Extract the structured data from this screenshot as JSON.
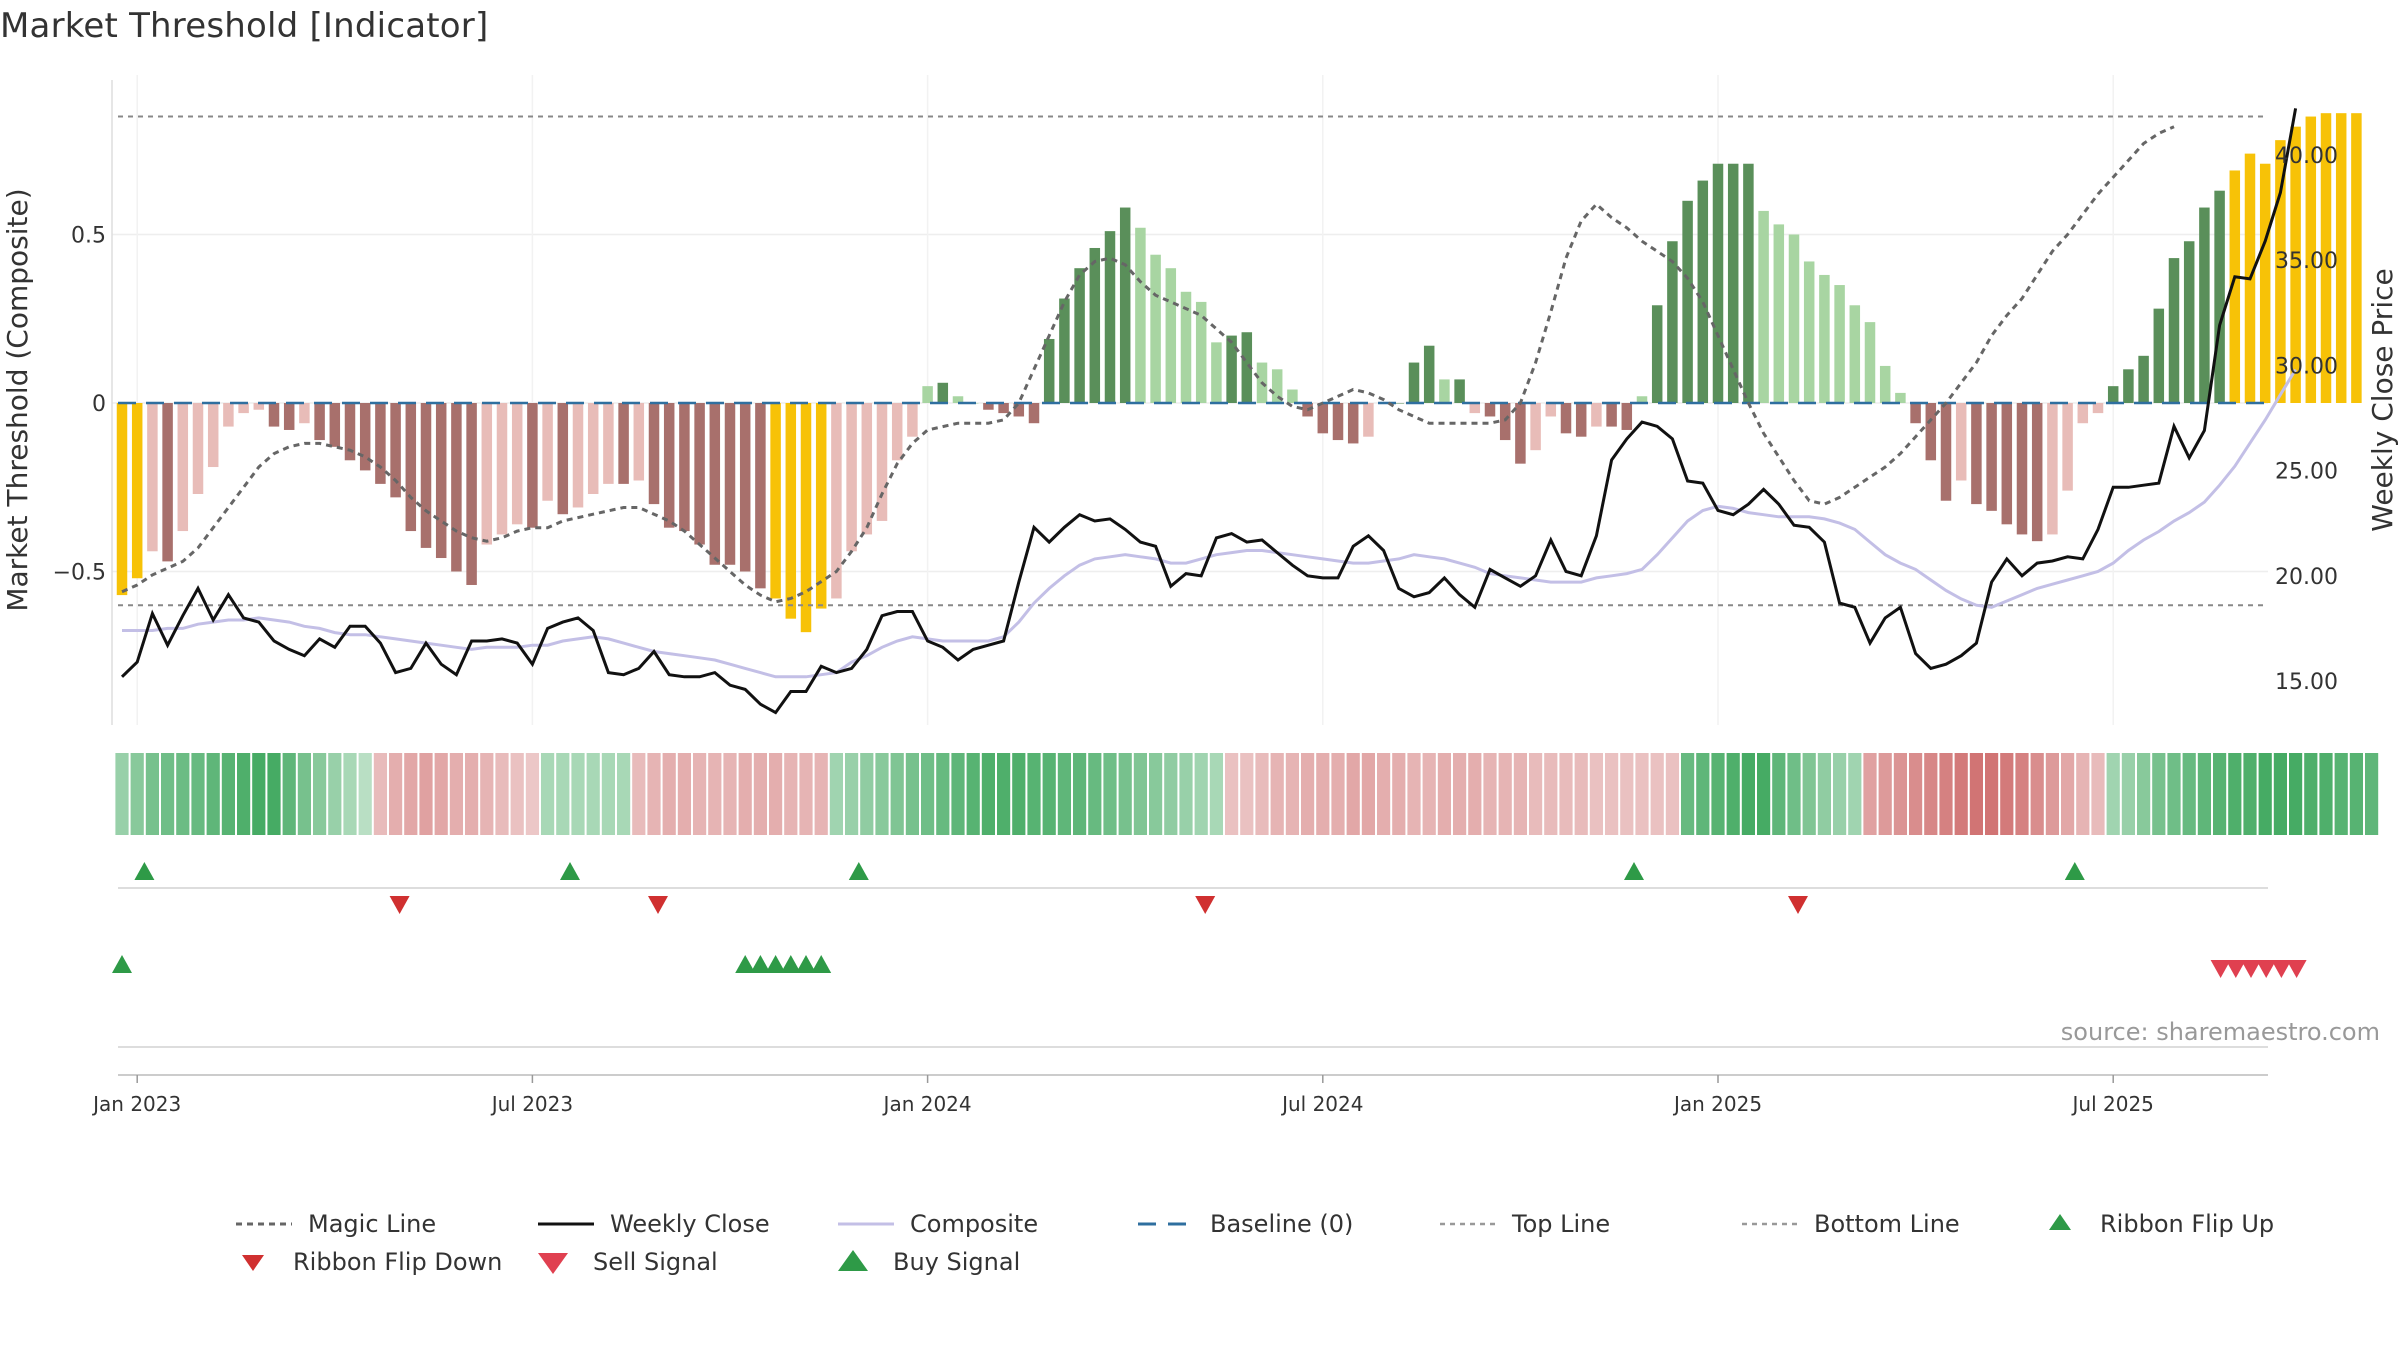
{
  "chart_data": {
    "type": "bar",
    "title": "Market Threshold [Indicator]",
    "ylabel_left": "Market Threshold (Composite)",
    "ylabel_right": "Weekly Close Price",
    "source": "source: sharemaestro.com",
    "ylim_left": [
      -0.95,
      0.95
    ],
    "ylim_right": [
      12.5,
      43.5
    ],
    "left_ticks": [
      {
        "v": 0.5,
        "label": "0.5"
      },
      {
        "v": 0,
        "label": "0"
      },
      {
        "v": -0.5,
        "label": "−0.5"
      }
    ],
    "right_ticks": [
      {
        "v": 40,
        "label": "40.00"
      },
      {
        "v": 35,
        "label": "35.00"
      },
      {
        "v": 30,
        "label": "30.00"
      },
      {
        "v": 25,
        "label": "25.00"
      },
      {
        "v": 20,
        "label": "20.00"
      },
      {
        "v": 15,
        "label": "15.00"
      }
    ],
    "x_ticks": [
      {
        "week": 1,
        "label": "Jan 2023"
      },
      {
        "week": 27,
        "label": "Jul 2023"
      },
      {
        "week": 53,
        "label": "Jan 2024"
      },
      {
        "week": 79,
        "label": "Jul 2024"
      },
      {
        "week": 105,
        "label": "Jan 2025"
      },
      {
        "week": 131,
        "label": "Jul 2025"
      }
    ],
    "top_line": 0.85,
    "bottom_line": -0.6,
    "baseline": 0,
    "composite_bars": [
      -0.57,
      -0.52,
      -0.44,
      -0.47,
      -0.38,
      -0.27,
      -0.19,
      -0.07,
      -0.03,
      -0.02,
      -0.07,
      -0.08,
      -0.06,
      -0.11,
      -0.13,
      -0.17,
      -0.2,
      -0.24,
      -0.28,
      -0.38,
      -0.43,
      -0.46,
      -0.5,
      -0.54,
      -0.42,
      -0.39,
      -0.36,
      -0.37,
      -0.29,
      -0.33,
      -0.31,
      -0.27,
      -0.24,
      -0.24,
      -0.23,
      -0.3,
      -0.37,
      -0.38,
      -0.42,
      -0.48,
      -0.48,
      -0.5,
      -0.55,
      -0.58,
      -0.64,
      -0.68,
      -0.61,
      -0.58,
      -0.44,
      -0.39,
      -0.35,
      -0.17,
      -0.1,
      0.05,
      0.06,
      0.02,
      0,
      -0.02,
      -0.03,
      -0.04,
      -0.06,
      0.19,
      0.31,
      0.4,
      0.46,
      0.51,
      0.58,
      0.52,
      0.44,
      0.4,
      0.33,
      0.3,
      0.18,
      0.2,
      0.21,
      0.12,
      0.1,
      0.04,
      -0.04,
      -0.09,
      -0.11,
      -0.12,
      -0.1,
      0,
      0,
      0.12,
      0.17,
      0.07,
      0.07,
      -0.03,
      -0.04,
      -0.11,
      -0.18,
      -0.14,
      -0.04,
      -0.09,
      -0.1,
      -0.07,
      -0.07,
      -0.08,
      0.02,
      0.29,
      0.48,
      0.6,
      0.66,
      0.71,
      0.71,
      0.71,
      0.57,
      0.53,
      0.5,
      0.42,
      0.38,
      0.35,
      0.29,
      0.24,
      0.11,
      0.03,
      -0.06,
      -0.17,
      -0.29,
      -0.23,
      -0.3,
      -0.32,
      -0.36,
      -0.39,
      -0.41,
      -0.39,
      -0.26,
      -0.06,
      -0.03,
      0.05,
      0.1,
      0.14,
      0.28,
      0.43,
      0.48,
      0.58,
      0.63,
      0.69,
      0.74,
      0.71,
      0.78,
      0.82,
      0.85,
      0.86,
      0.86,
      0.86
    ],
    "weekly_close": [
      15.2,
      15.9,
      18.2,
      16.7,
      18.1,
      19.4,
      17.9,
      19.1,
      18.0,
      17.8,
      16.9,
      16.5,
      16.2,
      17.0,
      16.6,
      17.6,
      17.6,
      16.8,
      15.4,
      15.6,
      16.8,
      15.8,
      15.3,
      16.9,
      16.9,
      17.0,
      16.8,
      15.8,
      17.5,
      17.8,
      18.0,
      17.4,
      15.4,
      15.3,
      15.6,
      16.4,
      15.3,
      15.2,
      15.2,
      15.4,
      14.8,
      14.6,
      13.9,
      13.5,
      14.5,
      14.5,
      15.7,
      15.4,
      15.6,
      16.5,
      18.1,
      18.3,
      18.3,
      16.9,
      16.6,
      16.0,
      16.5,
      16.7,
      16.9,
      19.7,
      22.3,
      21.6,
      22.3,
      22.9,
      22.6,
      22.7,
      22.2,
      21.6,
      21.4,
      19.5,
      20.1,
      20.0,
      21.8,
      22.0,
      21.6,
      21.7,
      21.1,
      20.5,
      20.0,
      19.9,
      19.9,
      21.4,
      21.9,
      21.2,
      19.4,
      19.0,
      19.2,
      19.9,
      19.1,
      18.5,
      20.3,
      19.9,
      19.5,
      20.0,
      21.7,
      20.2,
      20.0,
      21.9,
      25.5,
      26.5,
      27.3,
      27.1,
      26.5,
      24.5,
      24.4,
      23.1,
      22.9,
      23.4,
      24.1,
      23.4,
      22.4,
      22.3,
      21.6,
      18.7,
      18.5,
      16.8,
      18.0,
      18.5,
      16.3,
      15.6,
      15.8,
      16.2,
      16.8,
      19.7,
      20.8,
      20.0,
      20.6,
      20.7,
      20.9,
      20.8,
      22.2,
      24.2,
      24.2,
      24.3,
      24.4,
      27.1,
      25.6,
      26.9,
      31.9,
      34.2,
      34.1,
      35.9,
      38.2,
      42.2
    ],
    "composite_line": [
      17.4,
      17.4,
      17.4,
      17.5,
      17.5,
      17.7,
      17.8,
      17.9,
      17.9,
      18.0,
      17.9,
      17.8,
      17.6,
      17.5,
      17.3,
      17.2,
      17.2,
      17.1,
      17.0,
      16.9,
      16.8,
      16.7,
      16.6,
      16.5,
      16.6,
      16.6,
      16.6,
      16.7,
      16.7,
      16.9,
      17.0,
      17.1,
      17.0,
      16.8,
      16.6,
      16.4,
      16.3,
      16.2,
      16.1,
      16.0,
      15.8,
      15.6,
      15.4,
      15.2,
      15.2,
      15.2,
      15.3,
      15.4,
      15.9,
      16.2,
      16.6,
      16.9,
      17.1,
      17.0,
      16.9,
      16.9,
      16.9,
      16.9,
      17.1,
      17.8,
      18.7,
      19.4,
      20.0,
      20.5,
      20.8,
      20.9,
      21.0,
      20.9,
      20.8,
      20.6,
      20.6,
      20.8,
      21.0,
      21.1,
      21.2,
      21.2,
      21.1,
      21.0,
      20.9,
      20.8,
      20.7,
      20.6,
      20.6,
      20.7,
      20.8,
      21.0,
      20.9,
      20.8,
      20.6,
      20.4,
      20.1,
      20.0,
      19.9,
      19.8,
      19.7,
      19.7,
      19.7,
      19.9,
      20.0,
      20.1,
      20.3,
      21.0,
      21.8,
      22.6,
      23.1,
      23.3,
      23.2,
      23.0,
      22.9,
      22.8,
      22.8,
      22.8,
      22.7,
      22.5,
      22.2,
      21.6,
      21.0,
      20.6,
      20.3,
      19.8,
      19.3,
      18.9,
      18.6,
      18.5,
      18.8,
      19.1,
      19.4,
      19.6,
      19.8,
      20.0,
      20.2,
      20.6,
      21.2,
      21.7,
      22.1,
      22.6,
      23.0,
      23.5,
      24.3,
      25.2,
      26.3,
      27.4,
      28.6,
      29.8
    ],
    "magic_line": [
      -0.56,
      -0.54,
      -0.51,
      -0.49,
      -0.47,
      -0.43,
      -0.37,
      -0.31,
      -0.25,
      -0.19,
      -0.15,
      -0.13,
      -0.12,
      -0.12,
      -0.13,
      -0.14,
      -0.16,
      -0.19,
      -0.23,
      -0.28,
      -0.32,
      -0.35,
      -0.38,
      -0.4,
      -0.41,
      -0.4,
      -0.38,
      -0.37,
      -0.37,
      -0.35,
      -0.34,
      -0.33,
      -0.32,
      -0.31,
      -0.31,
      -0.33,
      -0.35,
      -0.38,
      -0.42,
      -0.46,
      -0.5,
      -0.54,
      -0.57,
      -0.59,
      -0.58,
      -0.56,
      -0.53,
      -0.5,
      -0.44,
      -0.37,
      -0.27,
      -0.18,
      -0.12,
      -0.08,
      -0.07,
      -0.06,
      -0.06,
      -0.06,
      -0.05,
      0.0,
      0.1,
      0.2,
      0.3,
      0.38,
      0.42,
      0.43,
      0.41,
      0.36,
      0.32,
      0.3,
      0.28,
      0.26,
      0.22,
      0.18,
      0.12,
      0.06,
      0.02,
      -0.01,
      -0.02,
      0.0,
      0.02,
      0.04,
      0.03,
      0.01,
      -0.02,
      -0.04,
      -0.06,
      -0.06,
      -0.06,
      -0.06,
      -0.06,
      -0.05,
      0.0,
      0.12,
      0.27,
      0.43,
      0.54,
      0.59,
      0.55,
      0.52,
      0.48,
      0.45,
      0.42,
      0.37,
      0.3,
      0.2,
      0.1,
      0.0,
      -0.09,
      -0.16,
      -0.23,
      -0.29,
      -0.3,
      -0.28,
      -0.25,
      -0.22,
      -0.19,
      -0.15,
      -0.1,
      -0.05,
      0.0,
      0.06,
      0.12,
      0.2,
      0.26,
      0.31,
      0.38,
      0.45,
      0.5,
      0.56,
      0.62,
      0.67,
      0.72,
      0.77,
      0.8,
      0.82
    ],
    "ribbon_strengths": [
      0.35,
      0.45,
      0.55,
      0.6,
      0.62,
      0.65,
      0.7,
      0.75,
      0.8,
      0.85,
      0.85,
      0.7,
      0.55,
      0.45,
      0.35,
      0.25,
      0.15,
      -0.25,
      -0.35,
      -0.4,
      -0.45,
      -0.4,
      -0.35,
      -0.35,
      -0.3,
      -0.25,
      -0.2,
      -0.15,
      0.25,
      0.25,
      0.25,
      0.25,
      0.25,
      0.25,
      -0.25,
      -0.3,
      -0.35,
      -0.35,
      -0.3,
      -0.3,
      -0.3,
      -0.35,
      -0.35,
      -0.35,
      -0.3,
      -0.3,
      -0.3,
      0.3,
      0.35,
      0.4,
      0.45,
      0.5,
      0.55,
      0.6,
      0.65,
      0.7,
      0.75,
      0.8,
      0.8,
      0.8,
      0.75,
      0.75,
      0.7,
      0.7,
      0.65,
      0.6,
      0.55,
      0.5,
      0.45,
      0.4,
      0.35,
      0.3,
      0.25,
      -0.2,
      -0.2,
      -0.25,
      -0.3,
      -0.3,
      -0.35,
      -0.35,
      -0.35,
      -0.4,
      -0.4,
      -0.35,
      -0.35,
      -0.3,
      -0.3,
      -0.35,
      -0.35,
      -0.35,
      -0.3,
      -0.3,
      -0.3,
      -0.25,
      -0.25,
      -0.25,
      -0.25,
      -0.2,
      -0.2,
      -0.2,
      -0.2,
      -0.2,
      -0.2,
      0.65,
      0.7,
      0.75,
      0.8,
      0.85,
      0.85,
      0.7,
      0.6,
      0.5,
      0.4,
      0.35,
      0.3,
      -0.45,
      -0.5,
      -0.55,
      -0.6,
      -0.65,
      -0.7,
      -0.75,
      -0.8,
      -0.8,
      -0.75,
      -0.7,
      -0.6,
      -0.5,
      -0.4,
      -0.3,
      -0.25,
      0.3,
      0.35,
      0.45,
      0.55,
      0.6,
      0.65,
      0.7,
      0.75,
      0.8,
      0.8,
      0.85,
      0.85,
      0.85,
      0.8,
      0.8,
      0.75,
      0.75,
      0.7
    ],
    "ribbon_flip_up": [
      2,
      30,
      49,
      100,
      129
    ],
    "ribbon_flip_down": [
      18,
      35,
      71,
      110
    ],
    "buy_signals": [
      0,
      41,
      42,
      43,
      44,
      45,
      46
    ],
    "sell_signals": [
      138,
      139,
      140,
      141,
      142,
      143
    ],
    "legend": [
      {
        "key": "magic",
        "label": "Magic Line"
      },
      {
        "key": "close",
        "label": "Weekly Close"
      },
      {
        "key": "composite",
        "label": "Composite"
      },
      {
        "key": "baseline",
        "label": "Baseline (0)"
      },
      {
        "key": "top",
        "label": "Top Line"
      },
      {
        "key": "bottom",
        "label": "Bottom Line"
      },
      {
        "key": "flip-up",
        "label": "Ribbon Flip Up"
      },
      {
        "key": "flip-down",
        "label": "Ribbon Flip Down"
      },
      {
        "key": "sell",
        "label": "Sell Signal"
      },
      {
        "key": "buy",
        "label": "Buy Signal"
      }
    ],
    "colors": {
      "pos_dark": "#5a8f5a",
      "pos_light": "#a8d5a2",
      "neg_dark": "#a8706c",
      "neg_light": "#e8bcb8",
      "extreme": "#f7c207",
      "close": "#111111",
      "composite": "#c3bfe6",
      "magic": "#666666",
      "baseline": "#2f6f9f",
      "flip_up": "#2e9a47",
      "flip_down": "#d03030",
      "sell": "#e04050",
      "buy": "#2e9a47"
    }
  }
}
